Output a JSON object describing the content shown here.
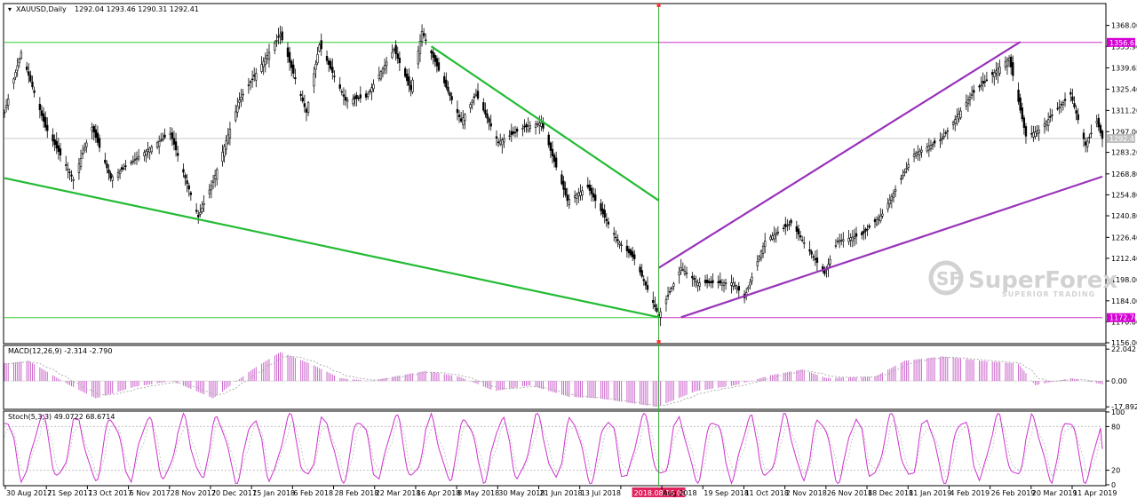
{
  "chart_data": [
    {
      "type": "candlestick",
      "title": "XAUUSD,Daily",
      "ohlc_label": "1292.04 1293.46 1290.31 1292.41",
      "ylim": [
        1156.0,
        1382.0
      ],
      "y_ticks": [
        "1368.00",
        "1353.90",
        "1339.65",
        "1325.40",
        "1311.20",
        "1297.00",
        "1283.20",
        "1268.80",
        "1254.80",
        "1240.80",
        "1226.40",
        "1212.40",
        "1198.00",
        "1184.00",
        "1170.00",
        "1156.00"
      ],
      "price_markers": [
        {
          "label": "1356.63",
          "value": 1356.63,
          "color": "#d500d5"
        },
        {
          "label": "1292.41",
          "value": 1292.41,
          "color": "#c0c0c0"
        },
        {
          "label": "1172.76",
          "value": 1172.76,
          "color": "#d500d5"
        }
      ],
      "horizontal_lines": [
        {
          "value": 1356.63,
          "from": "2017-08-30",
          "to": "2018-08-16",
          "color": "#33cc33"
        },
        {
          "value": 1356.63,
          "from": "2018-08-16",
          "to": "2019-04-11",
          "color": "#cc33cc"
        },
        {
          "value": 1172.76,
          "from": "2017-08-30",
          "to": "2018-08-16",
          "color": "#33cc33"
        },
        {
          "value": 1172.76,
          "from": "2018-08-16",
          "to": "2019-04-11",
          "color": "#cc33cc"
        }
      ],
      "trendlines": [
        {
          "color": "#22bb33",
          "points": [
            [
              "2017-08-30",
              1266
            ],
            [
              "2018-08-16",
              1173
            ]
          ]
        },
        {
          "color": "#22bb33",
          "points": [
            [
              "2018-04-16",
              1354
            ],
            [
              "2018-08-16",
              1251
            ]
          ]
        },
        {
          "color": "#9933bb",
          "points": [
            [
              "2018-08-16",
              1206
            ],
            [
              "2019-02-26",
              1357
            ]
          ]
        },
        {
          "color": "#9933bb",
          "points": [
            [
              "2018-08-28",
              1173
            ],
            [
              "2019-04-11",
              1267
            ]
          ]
        }
      ],
      "crosshair_date": "2018.08.16 00:00",
      "series_keypoints": [
        [
          "2017-08-30",
          1310
        ],
        [
          "2017-09-08",
          1350
        ],
        [
          "2017-09-21",
          1300
        ],
        [
          "2017-10-06",
          1265
        ],
        [
          "2017-10-16",
          1300
        ],
        [
          "2017-10-26",
          1266
        ],
        [
          "2017-11-15",
          1285
        ],
        [
          "2017-11-27",
          1296
        ],
        [
          "2017-12-12",
          1240
        ],
        [
          "2017-12-20",
          1264
        ],
        [
          "2018-01-03",
          1318
        ],
        [
          "2018-01-25",
          1362
        ],
        [
          "2018-02-08",
          1310
        ],
        [
          "2018-02-15",
          1355
        ],
        [
          "2018-03-01",
          1318
        ],
        [
          "2018-03-12",
          1320
        ],
        [
          "2018-03-27",
          1352
        ],
        [
          "2018-04-05",
          1325
        ],
        [
          "2018-04-11",
          1364
        ],
        [
          "2018-04-20",
          1338
        ],
        [
          "2018-05-02",
          1304
        ],
        [
          "2018-05-10",
          1322
        ],
        [
          "2018-05-22",
          1290
        ],
        [
          "2018-06-05",
          1300
        ],
        [
          "2018-06-14",
          1303
        ],
        [
          "2018-06-28",
          1251
        ],
        [
          "2018-07-09",
          1260
        ],
        [
          "2018-07-25",
          1224
        ],
        [
          "2018-08-03",
          1212
        ],
        [
          "2018-08-16",
          1174
        ],
        [
          "2018-08-28",
          1206
        ],
        [
          "2018-09-06",
          1196
        ],
        [
          "2018-09-25",
          1196
        ],
        [
          "2018-10-01",
          1186
        ],
        [
          "2018-10-12",
          1224
        ],
        [
          "2018-10-26",
          1236
        ],
        [
          "2018-11-13",
          1202
        ],
        [
          "2018-11-20",
          1224
        ],
        [
          "2018-12-03",
          1228
        ],
        [
          "2018-12-14",
          1242
        ],
        [
          "2018-12-31",
          1282
        ],
        [
          "2019-01-15",
          1292
        ],
        [
          "2019-01-31",
          1322
        ],
        [
          "2019-02-20",
          1346
        ],
        [
          "2019-03-01",
          1294
        ],
        [
          "2019-03-08",
          1298
        ],
        [
          "2019-03-25",
          1322
        ],
        [
          "2019-04-02",
          1288
        ],
        [
          "2019-04-08",
          1304
        ],
        [
          "2019-04-11",
          1292.41
        ]
      ],
      "x_tick_labels": [
        "30 Aug 2017",
        "21 Sep 2017",
        "13 Oct 2017",
        "6 Nov 2017",
        "28 Nov 2017",
        "20 Dec 2017",
        "15 Jan 2018",
        "6 Feb 2018",
        "28 Feb 2018",
        "22 Mar 2018",
        "16 Apr 2018",
        "8 May 2018",
        "30 May 2018",
        "21 Jun 2018",
        "13 Jul 2018",
        "2018.08.16 00:00",
        "Aug 2018",
        "19 Sep 2018",
        "11 Oct 2018",
        "2 Nov 2018",
        "26 Nov 2018",
        "18 Dec 2018",
        "11 Jan 2019",
        "4 Feb 2019",
        "26 Feb 2019",
        "20 Mar 2019",
        "11 Apr 2019"
      ],
      "x_range": [
        "2017-08-30",
        "2019-04-11"
      ]
    },
    {
      "type": "histogram",
      "title": "MACD(12,26,9) -2.314 -2.790",
      "ylim": [
        -19.0,
        24.0
      ],
      "y_ticks": [
        "22.042",
        "0.00",
        "-17.892"
      ],
      "color": "#cc66cc",
      "signal_color": "#b0b0b0",
      "series_keypoints": [
        [
          "2017-08-30",
          12
        ],
        [
          "2017-09-12",
          14
        ],
        [
          "2017-10-04",
          -3
        ],
        [
          "2017-10-18",
          -12
        ],
        [
          "2017-11-08",
          -4
        ],
        [
          "2017-11-28",
          0
        ],
        [
          "2017-12-20",
          -12
        ],
        [
          "2018-01-10",
          8
        ],
        [
          "2018-01-25",
          20
        ],
        [
          "2018-02-10",
          12
        ],
        [
          "2018-02-26",
          2
        ],
        [
          "2018-03-14",
          0
        ],
        [
          "2018-04-13",
          7
        ],
        [
          "2018-05-01",
          3
        ],
        [
          "2018-05-20",
          -7
        ],
        [
          "2018-06-08",
          -3
        ],
        [
          "2018-06-29",
          -11
        ],
        [
          "2018-07-15",
          -12
        ],
        [
          "2018-08-15",
          -18
        ],
        [
          "2018-09-05",
          -7
        ],
        [
          "2018-09-26",
          -3
        ],
        [
          "2018-10-15",
          4
        ],
        [
          "2018-11-01",
          8
        ],
        [
          "2018-11-14",
          2
        ],
        [
          "2018-12-10",
          3
        ],
        [
          "2018-12-26",
          14
        ],
        [
          "2019-01-15",
          17
        ],
        [
          "2019-02-05",
          14
        ],
        [
          "2019-02-25",
          12
        ],
        [
          "2019-03-06",
          -3
        ],
        [
          "2019-03-25",
          2
        ],
        [
          "2019-04-11",
          -2.3
        ]
      ]
    },
    {
      "type": "line",
      "title": "Stoch(5,3,3) 49.0722 68.6714",
      "ylim": [
        0,
        100
      ],
      "y_ticks": [
        "100",
        "80",
        "20",
        "0"
      ],
      "levels": [
        80,
        20
      ],
      "main_color": "#cc33cc",
      "signal_color": "#cccccc",
      "period_days": 19,
      "phase_days": 4,
      "current_k": 49.0722,
      "current_d": 68.6714
    }
  ],
  "watermark": {
    "brand": "SuperForex",
    "tagline": "SUPERIOR TRADING"
  }
}
